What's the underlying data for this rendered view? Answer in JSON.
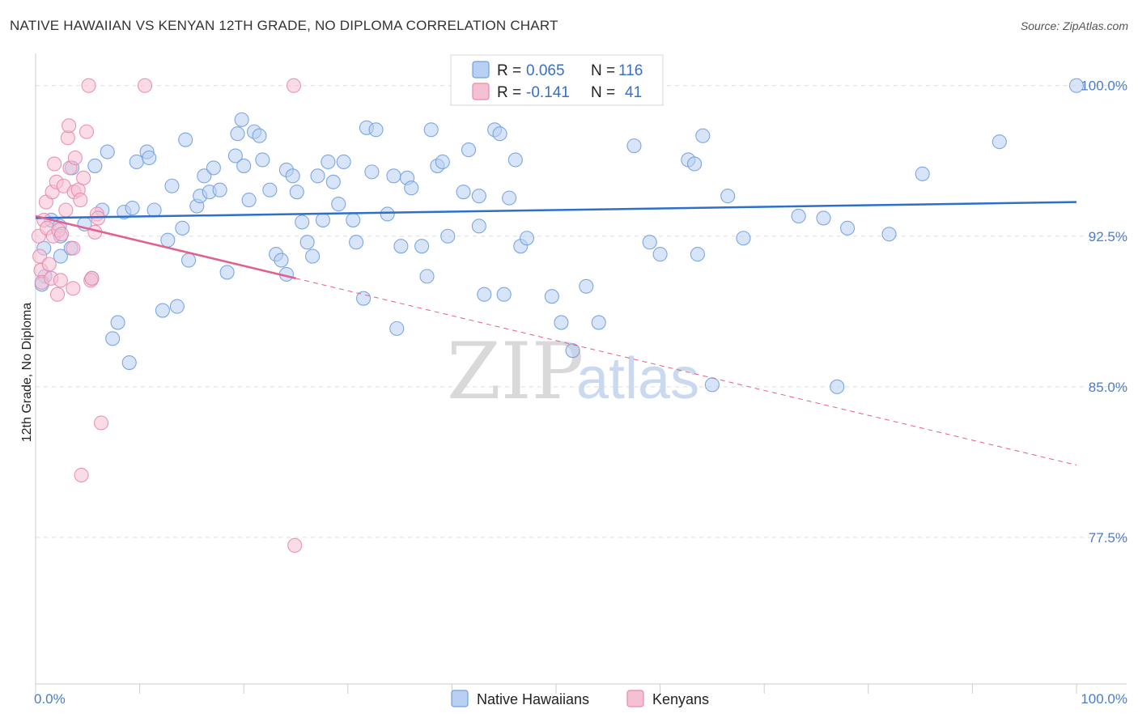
{
  "header": {
    "title": "NATIVE HAWAIIAN VS KENYAN 12TH GRADE, NO DIPLOMA CORRELATION CHART",
    "source": "Source: ZipAtlas.com"
  },
  "watermark": {
    "zip": "ZIP",
    "atlas": "atlas"
  },
  "colors": {
    "blue": "#6f9fe0",
    "blue_fill": "#b8d0f2",
    "blue_line": "#2e6fcb",
    "pink": "#e889ad",
    "pink_fill": "#f6c0d4",
    "pink_line": "#e0608e",
    "axis_text": "#4a7cc9",
    "grid": "#dddddd"
  },
  "legend": {
    "rows": [
      {
        "r_label": "R = ",
        "r_value": "0.065",
        "n_label": "N = ",
        "n_value": "116"
      },
      {
        "r_label": "R = ",
        "r_value": "-0.141",
        "n_label": "N = ",
        "n_value": "41"
      }
    ]
  },
  "chart_data": {
    "type": "scatter",
    "title": "NATIVE HAWAIIAN VS KENYAN 12TH GRADE, NO DIPLOMA CORRELATION CHART",
    "xlabel": "",
    "ylabel": "12th Grade, No Diploma",
    "xlim": [
      0,
      100
    ],
    "ylim": [
      70.2,
      101.6
    ],
    "x_tick_labels": [
      "0.0%",
      "100.0%"
    ],
    "y_ticks": [
      100.0,
      92.5,
      85.0,
      77.5
    ],
    "y_tick_labels": [
      "100.0%",
      "92.5%",
      "85.0%",
      "77.5%"
    ],
    "grid": "horizontal-dashed",
    "legend_placement": "top-center",
    "series": [
      {
        "name": "Native Hawaiians",
        "r": 0.065,
        "n": 116,
        "trend": {
          "x": [
            0,
            100
          ],
          "y": [
            93.4,
            94.2
          ],
          "extrapolate_to": 100
        },
        "points": [
          [
            0.8,
            91.9
          ],
          [
            0.9,
            90.5
          ],
          [
            0.6,
            90.1
          ],
          [
            1.5,
            93.3
          ],
          [
            2.3,
            93.0
          ],
          [
            2.4,
            92.5
          ],
          [
            2.4,
            91.5
          ],
          [
            3.4,
            91.9
          ],
          [
            3.5,
            95.9
          ],
          [
            4.7,
            93.1
          ],
          [
            5.4,
            90.4
          ],
          [
            5.7,
            96.0
          ],
          [
            6.4,
            93.8
          ],
          [
            6.9,
            96.7
          ],
          [
            7.4,
            87.4
          ],
          [
            7.9,
            88.2
          ],
          [
            8.5,
            93.7
          ],
          [
            9.0,
            86.2
          ],
          [
            9.3,
            93.9
          ],
          [
            9.7,
            96.2
          ],
          [
            10.7,
            96.7
          ],
          [
            10.9,
            96.4
          ],
          [
            11.4,
            93.8
          ],
          [
            12.2,
            88.8
          ],
          [
            12.7,
            92.3
          ],
          [
            13.1,
            95.0
          ],
          [
            13.6,
            89.0
          ],
          [
            14.1,
            92.9
          ],
          [
            14.4,
            97.3
          ],
          [
            14.7,
            91.3
          ],
          [
            15.5,
            94.0
          ],
          [
            15.8,
            94.5
          ],
          [
            16.2,
            95.5
          ],
          [
            16.7,
            94.7
          ],
          [
            17.1,
            95.9
          ],
          [
            17.7,
            94.8
          ],
          [
            18.4,
            90.7
          ],
          [
            19.2,
            96.5
          ],
          [
            19.4,
            97.6
          ],
          [
            19.8,
            98.3
          ],
          [
            20.0,
            96.0
          ],
          [
            20.5,
            94.3
          ],
          [
            21.0,
            97.7
          ],
          [
            21.5,
            97.5
          ],
          [
            21.8,
            96.3
          ],
          [
            22.5,
            94.8
          ],
          [
            23.1,
            91.6
          ],
          [
            23.6,
            91.3
          ],
          [
            24.1,
            95.8
          ],
          [
            24.1,
            90.6
          ],
          [
            24.7,
            95.5
          ],
          [
            25.1,
            94.7
          ],
          [
            25.6,
            93.2
          ],
          [
            26.1,
            92.2
          ],
          [
            26.6,
            91.5
          ],
          [
            27.1,
            95.5
          ],
          [
            27.6,
            93.3
          ],
          [
            28.1,
            96.2
          ],
          [
            28.6,
            95.2
          ],
          [
            29.1,
            94.1
          ],
          [
            29.6,
            96.2
          ],
          [
            30.5,
            93.3
          ],
          [
            30.8,
            92.2
          ],
          [
            31.5,
            89.4
          ],
          [
            31.8,
            97.9
          ],
          [
            32.3,
            95.7
          ],
          [
            32.7,
            97.8
          ],
          [
            33.8,
            93.6
          ],
          [
            34.4,
            95.5
          ],
          [
            34.7,
            87.9
          ],
          [
            35.1,
            92.0
          ],
          [
            35.7,
            95.4
          ],
          [
            36.1,
            94.9
          ],
          [
            37.1,
            92.0
          ],
          [
            37.6,
            90.5
          ],
          [
            38.0,
            97.8
          ],
          [
            38.6,
            96.0
          ],
          [
            39.1,
            96.2
          ],
          [
            39.6,
            92.5
          ],
          [
            41.1,
            94.7
          ],
          [
            41.6,
            96.8
          ],
          [
            41.8,
            100.0
          ],
          [
            42.6,
            94.5
          ],
          [
            42.6,
            93.0
          ],
          [
            43.1,
            89.6
          ],
          [
            44.1,
            97.8
          ],
          [
            44.6,
            97.6
          ],
          [
            45.0,
            89.6
          ],
          [
            45.5,
            94.4
          ],
          [
            46.1,
            96.3
          ],
          [
            46.6,
            92.0
          ],
          [
            47.2,
            92.4
          ],
          [
            49.6,
            89.5
          ],
          [
            50.5,
            88.2
          ],
          [
            51.6,
            86.8
          ],
          [
            52.9,
            90.0
          ],
          [
            54.1,
            88.2
          ],
          [
            57.5,
            97.0
          ],
          [
            59.0,
            92.2
          ],
          [
            60.0,
            91.6
          ],
          [
            59.6,
            100.0
          ],
          [
            62.7,
            96.3
          ],
          [
            63.3,
            96.1
          ],
          [
            63.6,
            91.6
          ],
          [
            64.1,
            97.5
          ],
          [
            65.0,
            85.1
          ],
          [
            66.5,
            94.5
          ],
          [
            68.0,
            92.4
          ],
          [
            73.3,
            93.5
          ],
          [
            75.7,
            93.4
          ],
          [
            77.0,
            85.0
          ],
          [
            78.0,
            92.9
          ],
          [
            82.0,
            92.6
          ],
          [
            85.2,
            95.6
          ],
          [
            92.6,
            97.2
          ],
          [
            100.0,
            100.0
          ]
        ]
      },
      {
        "name": "Kenyans",
        "r": -0.141,
        "n": 41,
        "trend": {
          "x": [
            0,
            25
          ],
          "y": [
            93.5,
            90.4
          ],
          "extrapolate_to": 100
        },
        "points": [
          [
            0.3,
            92.5
          ],
          [
            0.4,
            91.5
          ],
          [
            0.5,
            90.8
          ],
          [
            0.6,
            90.2
          ],
          [
            0.8,
            93.3
          ],
          [
            1.0,
            94.2
          ],
          [
            1.1,
            92.9
          ],
          [
            1.3,
            91.1
          ],
          [
            1.5,
            90.4
          ],
          [
            1.6,
            94.7
          ],
          [
            1.7,
            92.5
          ],
          [
            1.8,
            96.1
          ],
          [
            2.0,
            95.2
          ],
          [
            2.1,
            89.6
          ],
          [
            2.2,
            92.8
          ],
          [
            2.4,
            90.3
          ],
          [
            2.5,
            92.6
          ],
          [
            2.7,
            95.0
          ],
          [
            2.9,
            93.8
          ],
          [
            3.1,
            97.4
          ],
          [
            3.2,
            98.0
          ],
          [
            3.3,
            95.9
          ],
          [
            3.6,
            91.9
          ],
          [
            3.7,
            94.7
          ],
          [
            3.8,
            96.4
          ],
          [
            4.1,
            94.8
          ],
          [
            4.3,
            94.3
          ],
          [
            4.4,
            80.6
          ],
          [
            4.6,
            95.4
          ],
          [
            4.9,
            97.7
          ],
          [
            5.3,
            90.3
          ],
          [
            5.4,
            90.4
          ],
          [
            5.7,
            92.7
          ],
          [
            5.9,
            93.6
          ],
          [
            6.0,
            93.4
          ],
          [
            6.3,
            83.2
          ],
          [
            5.1,
            100.0
          ],
          [
            10.5,
            100.0
          ],
          [
            24.8,
            100.0
          ],
          [
            24.9,
            77.1
          ],
          [
            3.6,
            89.9
          ]
        ]
      }
    ]
  },
  "bottom_legend": {
    "items": [
      {
        "label": "Native Hawaiians"
      },
      {
        "label": "Kenyans"
      }
    ]
  }
}
